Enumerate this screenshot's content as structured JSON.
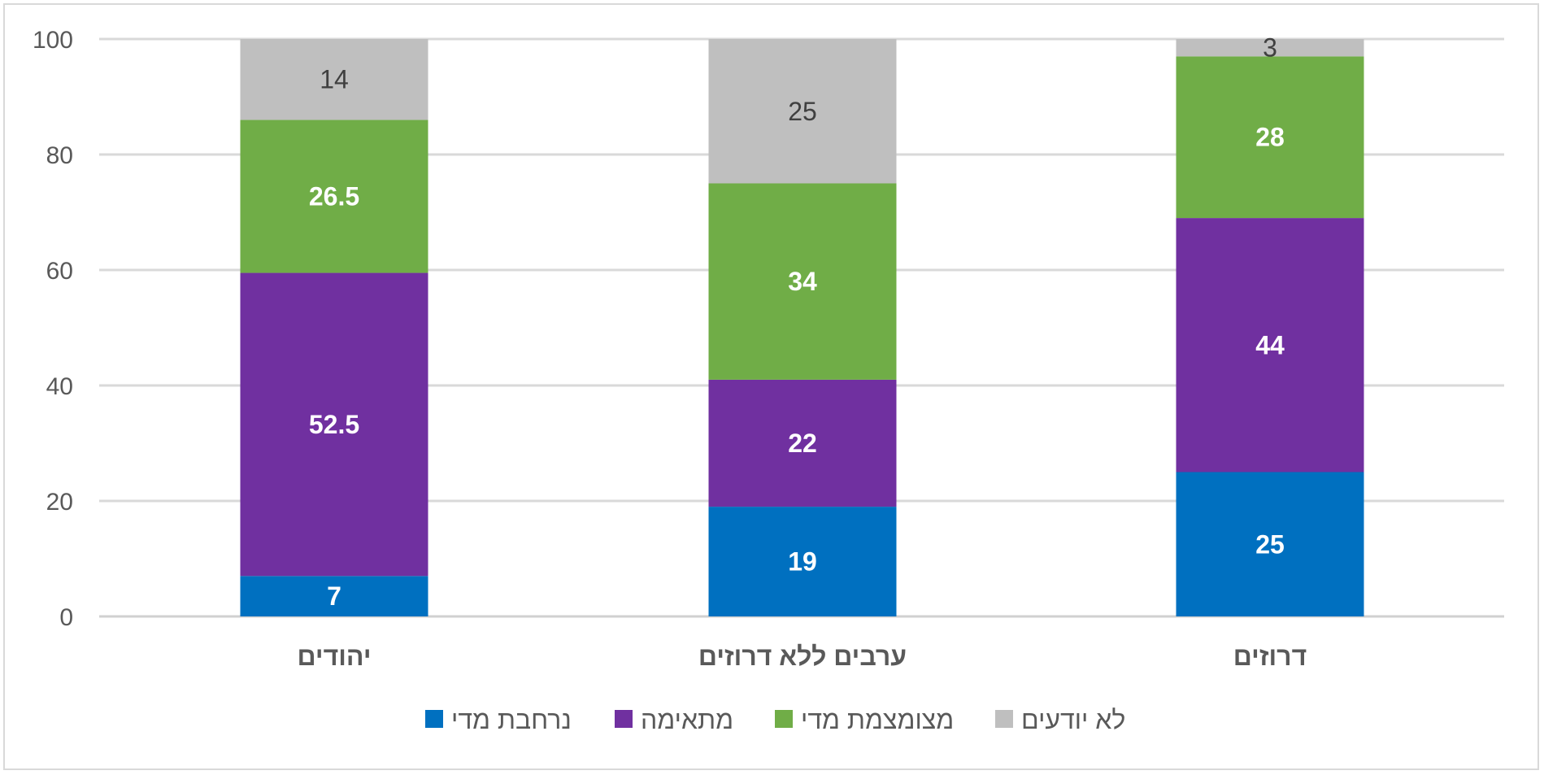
{
  "chart_data": {
    "type": "bar",
    "stacked": true,
    "categories": [
      "יהודים",
      "ערבים ללא דרוזים",
      "דרוזים"
    ],
    "series": [
      {
        "name": "נרחבת מדי",
        "color": "#0070c0",
        "label_color": "#ffffff",
        "label_bold": true,
        "values": [
          7,
          19,
          25
        ]
      },
      {
        "name": "מתאימה",
        "color": "#7030a0",
        "label_color": "#ffffff",
        "label_bold": true,
        "values": [
          52.5,
          22,
          44
        ]
      },
      {
        "name": "מצומצמת מדי",
        "color": "#70ad47",
        "label_color": "#ffffff",
        "label_bold": true,
        "values": [
          26.5,
          34,
          28
        ]
      },
      {
        "name": "לא יודעים",
        "color": "#bfbfbf",
        "label_color": "#404040",
        "label_bold": false,
        "values": [
          14,
          25,
          3
        ]
      }
    ],
    "ylim": [
      0,
      100
    ],
    "yticks": [
      0,
      20,
      40,
      60,
      80,
      100
    ],
    "grid": true,
    "legend_position": "bottom",
    "title": "",
    "xlabel": "",
    "ylabel": ""
  }
}
